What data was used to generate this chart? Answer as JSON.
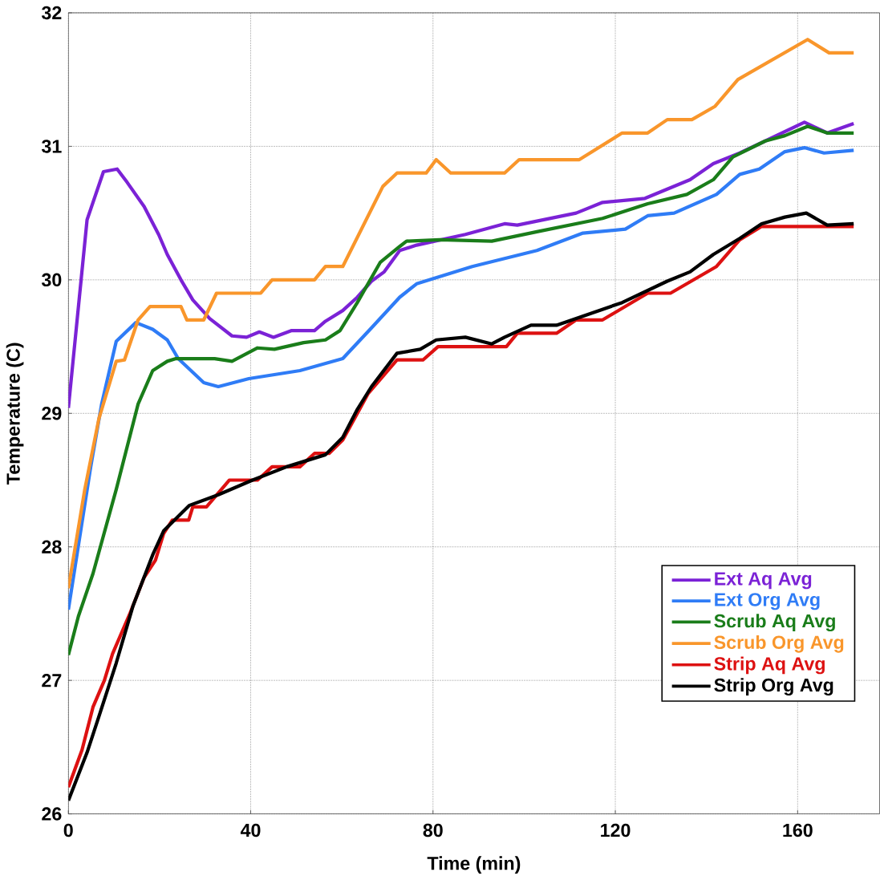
{
  "chart_data": {
    "type": "line",
    "xlabel": "Time (min)",
    "ylabel": "Temperature (C)",
    "xlim": [
      0,
      178
    ],
    "ylim": [
      26,
      32
    ],
    "xticks": [
      0,
      40,
      80,
      120,
      160
    ],
    "yticks": [
      26,
      27,
      28,
      29,
      30,
      31,
      32
    ],
    "grid": true,
    "legend": "bottom right",
    "marker": "none",
    "line_style": "solid",
    "series": [
      {
        "name": "Ext Aq Avg",
        "color": "#7b22d6",
        "x": [
          0,
          4.1,
          7.7,
          10.7,
          12.9,
          16.6,
          19.8,
          21.7,
          24.7,
          27.3,
          31,
          35.9,
          39.1,
          41.9,
          45,
          49,
          54,
          56.4,
          60.2,
          63.4,
          66.5,
          69.3,
          72.7,
          76.4,
          87.1,
          95.7,
          98.5,
          111.4,
          117.2,
          126.5,
          136.4,
          141.5,
          147.3,
          152.9,
          161.5,
          166.5,
          172.3
        ],
        "values": [
          29.04,
          30.45,
          30.81,
          30.83,
          30.73,
          30.55,
          30.34,
          30.19,
          30.0,
          29.85,
          29.71,
          29.58,
          29.57,
          29.61,
          29.57,
          29.62,
          29.62,
          29.69,
          29.77,
          29.87,
          29.99,
          30.06,
          30.22,
          30.26,
          30.34,
          30.42,
          30.41,
          30.5,
          30.58,
          30.61,
          30.75,
          30.87,
          30.95,
          31.04,
          31.18,
          31.1,
          31.17
        ]
      },
      {
        "name": "Ext Org Avg",
        "color": "#2f7cf6",
        "x": [
          0,
          4.9,
          7.3,
          10.5,
          14.8,
          18.5,
          21.7,
          24.1,
          29.7,
          32.9,
          39.6,
          50.8,
          60.2,
          66.5,
          72.7,
          76.4,
          88.6,
          102.8,
          112.9,
          122.2,
          127.1,
          132.9,
          142.2,
          147.3,
          151.6,
          157.2,
          161.5,
          165.8,
          172.3
        ],
        "values": [
          27.53,
          28.6,
          29.07,
          29.54,
          29.68,
          29.63,
          29.55,
          29.41,
          29.23,
          29.2,
          29.26,
          29.32,
          29.41,
          29.64,
          29.87,
          29.97,
          30.1,
          30.22,
          30.35,
          30.38,
          30.48,
          30.5,
          30.64,
          30.79,
          30.83,
          30.96,
          30.99,
          30.95,
          30.97
        ]
      },
      {
        "name": "Scrub Aq Avg",
        "color": "#1a7d1a",
        "x": [
          0,
          2.2,
          5.4,
          10.5,
          15.3,
          18.5,
          21.7,
          23.6,
          32.1,
          35.9,
          41.5,
          45.2,
          51.6,
          56.4,
          59.6,
          63.4,
          68.4,
          72.7,
          74.2,
          81.5,
          92.9,
          102.8,
          117.2,
          127.1,
          135.7,
          141.5,
          145.8,
          152.9,
          157.2,
          162.2,
          166.5,
          172.3
        ],
        "values": [
          27.19,
          27.48,
          27.8,
          28.43,
          29.07,
          29.32,
          29.39,
          29.41,
          29.41,
          29.39,
          29.49,
          29.48,
          29.53,
          29.55,
          29.62,
          29.83,
          30.13,
          30.25,
          30.29,
          30.3,
          30.29,
          30.36,
          30.46,
          30.57,
          30.64,
          30.75,
          30.92,
          31.04,
          31.08,
          31.15,
          31.1,
          31.1
        ]
      },
      {
        "name": "Scrub Org Avg",
        "color": "#f9962b",
        "x": [
          0,
          3.6,
          6.7,
          10.5,
          12.3,
          15.3,
          17.9,
          24.7,
          26,
          29.7,
          32.5,
          42.2,
          44.7,
          54,
          56.4,
          60.2,
          69,
          72.1,
          78.5,
          80.7,
          83.9,
          95.7,
          98.9,
          112.1,
          121.5,
          127.1,
          131.4,
          136.8,
          141.9,
          146.9,
          162.2,
          166.9,
          172.3
        ],
        "values": [
          27.69,
          28.43,
          28.96,
          29.39,
          29.4,
          29.7,
          29.8,
          29.8,
          29.7,
          29.7,
          29.9,
          29.9,
          30.0,
          30.0,
          30.1,
          30.1,
          30.7,
          30.8,
          30.8,
          30.9,
          30.8,
          30.8,
          30.9,
          30.9,
          31.1,
          31.1,
          31.2,
          31.2,
          31.3,
          31.5,
          31.8,
          31.7,
          31.7
        ]
      },
      {
        "name": "Strip Aq Avg",
        "color": "#dd1111",
        "x": [
          0,
          3,
          5.4,
          7.9,
          9.7,
          13.5,
          16.6,
          19.1,
          20.9,
          22.8,
          26.4,
          27.3,
          30.3,
          35.3,
          41.5,
          44.7,
          50.8,
          54,
          57.2,
          60.2,
          65.8,
          72.1,
          77.8,
          81.1,
          96.1,
          98.5,
          107.1,
          111.4,
          117.2,
          127.1,
          132.1,
          142.2,
          147.3,
          152.1,
          172.3
        ],
        "values": [
          26.2,
          26.48,
          26.8,
          27.0,
          27.2,
          27.5,
          27.77,
          27.9,
          28.1,
          28.2,
          28.2,
          28.3,
          28.3,
          28.5,
          28.5,
          28.6,
          28.6,
          28.7,
          28.7,
          28.8,
          29.15,
          29.4,
          29.4,
          29.5,
          29.5,
          29.6,
          29.6,
          29.7,
          29.7,
          29.9,
          29.9,
          30.1,
          30.3,
          30.4,
          30.4
        ]
      },
      {
        "name": "Strip Org Avg",
        "color": "#000000",
        "x": [
          0,
          4.1,
          6.7,
          10.5,
          14.2,
          18.5,
          20.9,
          26.5,
          32.9,
          40.4,
          47.9,
          56.4,
          60.2,
          63.4,
          66.5,
          72.1,
          77.2,
          80.7,
          87.1,
          92.9,
          95.7,
          101.5,
          107.1,
          121.5,
          131.4,
          136.4,
          141.5,
          147.3,
          152.1,
          157.2,
          161.9,
          166.5,
          172.3
        ],
        "values": [
          26.1,
          26.46,
          26.73,
          27.13,
          27.56,
          27.94,
          28.12,
          28.31,
          28.39,
          28.5,
          28.6,
          28.69,
          28.82,
          29.03,
          29.2,
          29.45,
          29.48,
          29.55,
          29.57,
          29.52,
          29.57,
          29.66,
          29.66,
          29.83,
          29.99,
          30.06,
          30.19,
          30.31,
          30.42,
          30.47,
          30.5,
          30.41,
          30.42
        ]
      }
    ]
  }
}
